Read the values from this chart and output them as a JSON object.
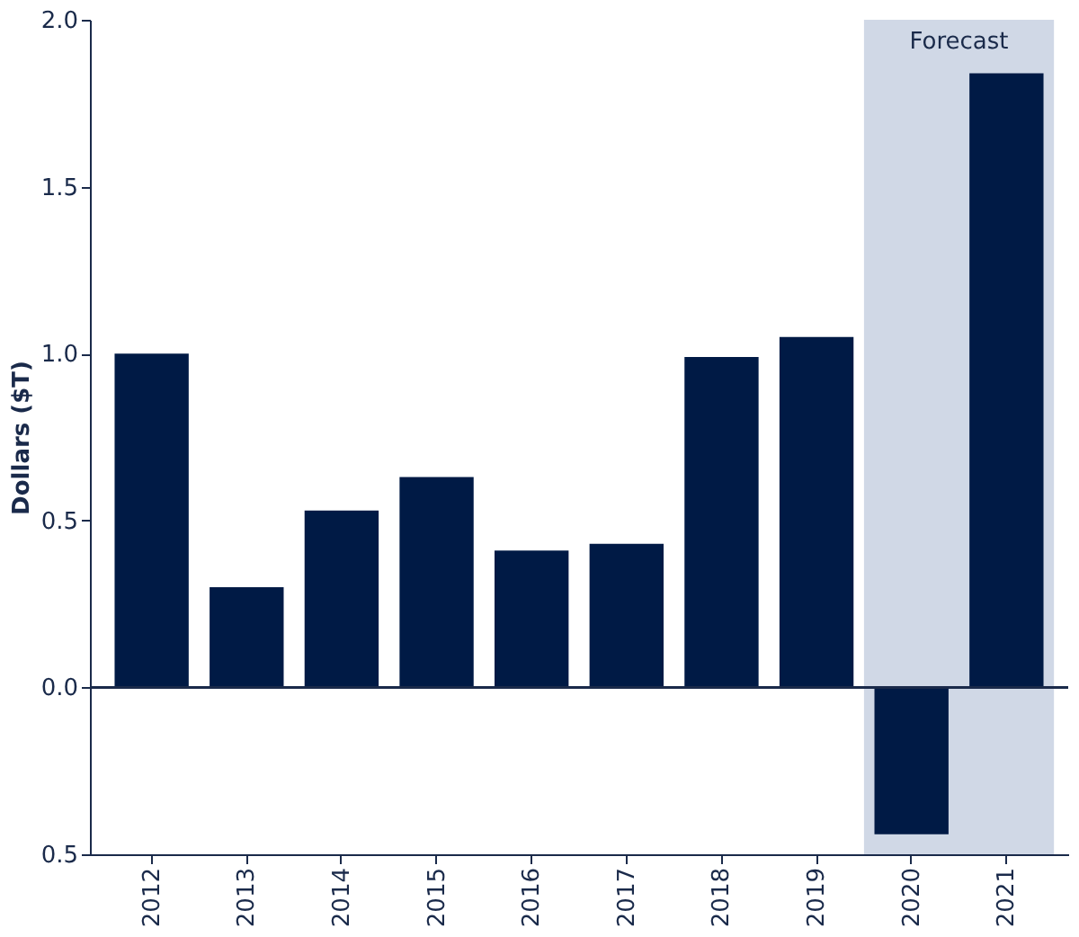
{
  "chart_data": {
    "type": "bar",
    "ylabel": "Dollars ($T)",
    "categories": [
      "2012",
      "2013",
      "2014",
      "2015",
      "2016",
      "2017",
      "2018",
      "2019",
      "2020",
      "2021"
    ],
    "values": [
      1.0,
      0.3,
      0.53,
      0.63,
      0.41,
      0.43,
      0.99,
      1.05,
      -0.44,
      1.84
    ],
    "color": "#001a45",
    "ylim": [
      -0.5,
      2.0
    ],
    "yticks": [
      {
        "value": -0.5,
        "label": "0.5"
      },
      {
        "value": 0,
        "label": "0.0"
      },
      0.5,
      {
        "value": 1,
        "label": "1.0"
      },
      1.5,
      {
        "value": 2,
        "label": "2.0"
      }
    ],
    "bands": [
      {
        "axis": "x",
        "from": "2020",
        "to": "2021",
        "label": "Forecast",
        "color": "#d0d8e6"
      }
    ],
    "grid": false
  }
}
